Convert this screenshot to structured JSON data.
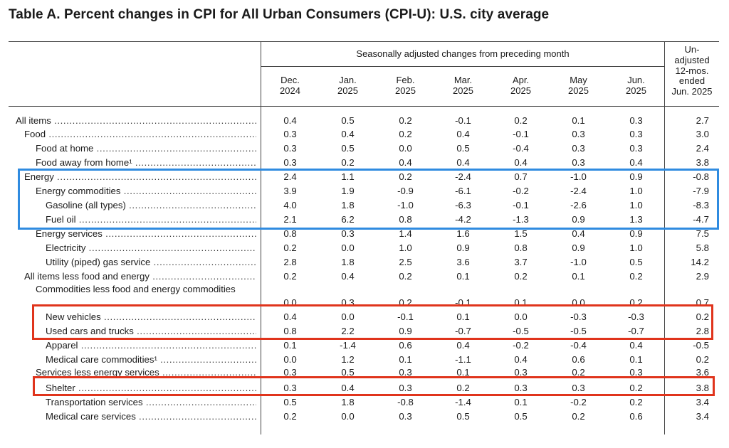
{
  "title": "Table A. Percent changes in CPI for All Urban Consumers (CPI-U): U.S. city average",
  "header": {
    "group_label": "Seasonally adjusted changes from preceding month",
    "columns": [
      "Dec.\n2024",
      "Jan.\n2025",
      "Feb.\n2025",
      "Mar.\n2025",
      "Apr.\n2025",
      "May\n2025",
      "Jun.\n2025"
    ],
    "unadjusted_label": "Un-\nadjusted\n12-mos.\nended\nJun. 2025"
  },
  "rows": [
    {
      "label": "All items",
      "indent": 0,
      "values": [
        "0.4",
        "0.5",
        "0.2",
        "-0.1",
        "0.2",
        "0.1",
        "0.3",
        "2.7"
      ]
    },
    {
      "label": "Food",
      "indent": 1,
      "values": [
        "0.3",
        "0.4",
        "0.2",
        "0.4",
        "-0.1",
        "0.3",
        "0.3",
        "3.0"
      ]
    },
    {
      "label": "Food at home",
      "indent": 2,
      "values": [
        "0.3",
        "0.5",
        "0.0",
        "0.5",
        "-0.4",
        "0.3",
        "0.3",
        "2.4"
      ]
    },
    {
      "label": "Food away from home¹",
      "indent": 2,
      "values": [
        "0.3",
        "0.2",
        "0.4",
        "0.4",
        "0.4",
        "0.3",
        "0.4",
        "3.8"
      ]
    },
    {
      "label": "Energy",
      "indent": 1,
      "values": [
        "2.4",
        "1.1",
        "0.2",
        "-2.4",
        "0.7",
        "-1.0",
        "0.9",
        "-0.8"
      ]
    },
    {
      "label": "Energy commodities",
      "indent": 2,
      "values": [
        "3.9",
        "1.9",
        "-0.9",
        "-6.1",
        "-0.2",
        "-2.4",
        "1.0",
        "-7.9"
      ]
    },
    {
      "label": "Gasoline (all types)",
      "indent": 3,
      "values": [
        "4.0",
        "1.8",
        "-1.0",
        "-6.3",
        "-0.1",
        "-2.6",
        "1.0",
        "-8.3"
      ]
    },
    {
      "label": "Fuel oil",
      "indent": 3,
      "values": [
        "2.1",
        "6.2",
        "0.8",
        "-4.2",
        "-1.3",
        "0.9",
        "1.3",
        "-4.7"
      ]
    },
    {
      "label": "Energy services",
      "indent": 2,
      "values": [
        "0.8",
        "0.3",
        "1.4",
        "1.6",
        "1.5",
        "0.4",
        "0.9",
        "7.5"
      ]
    },
    {
      "label": "Electricity",
      "indent": 3,
      "values": [
        "0.2",
        "0.0",
        "1.0",
        "0.9",
        "0.8",
        "0.9",
        "1.0",
        "5.8"
      ]
    },
    {
      "label": "Utility (piped) gas service",
      "indent": 3,
      "values": [
        "2.8",
        "1.8",
        "2.5",
        "3.6",
        "3.7",
        "-1.0",
        "0.5",
        "14.2"
      ]
    },
    {
      "label": "All items less food and energy",
      "indent": 1,
      "values": [
        "0.2",
        "0.4",
        "0.2",
        "0.1",
        "0.2",
        "0.1",
        "0.2",
        "2.9"
      ]
    },
    {
      "label": "Commodities less food and energy commodities",
      "indent": 2,
      "wrap": true,
      "values": [
        "0.0",
        "0.3",
        "0.2",
        "-0.1",
        "0.1",
        "0.0",
        "0.2",
        "0.7"
      ]
    },
    {
      "label": "New vehicles",
      "indent": 3,
      "values": [
        "0.4",
        "0.0",
        "-0.1",
        "0.1",
        "0.0",
        "-0.3",
        "-0.3",
        "0.2"
      ]
    },
    {
      "label": "Used cars and trucks",
      "indent": 3,
      "values": [
        "0.8",
        "2.2",
        "0.9",
        "-0.7",
        "-0.5",
        "-0.5",
        "-0.7",
        "2.8"
      ]
    },
    {
      "label": "Apparel",
      "indent": 3,
      "values": [
        "0.1",
        "-1.4",
        "0.6",
        "0.4",
        "-0.2",
        "-0.4",
        "0.4",
        "-0.5"
      ]
    },
    {
      "label": "Medical care commodities¹",
      "indent": 3,
      "values": [
        "0.0",
        "1.2",
        "0.1",
        "-1.1",
        "0.4",
        "0.6",
        "0.1",
        "0.2"
      ]
    },
    {
      "label": "Services less energy services",
      "indent": 2,
      "values": [
        "0.3",
        "0.5",
        "0.3",
        "0.1",
        "0.3",
        "0.2",
        "0.3",
        "3.6"
      ]
    },
    {
      "label": "Shelter",
      "indent": 3,
      "values": [
        "0.3",
        "0.4",
        "0.3",
        "0.2",
        "0.3",
        "0.3",
        "0.2",
        "3.8"
      ]
    },
    {
      "label": "Transportation services",
      "indent": 3,
      "values": [
        "0.5",
        "1.8",
        "-0.8",
        "-1.4",
        "0.1",
        "-0.2",
        "0.2",
        "3.4"
      ]
    },
    {
      "label": "Medical care services",
      "indent": 3,
      "values": [
        "0.2",
        "0.0",
        "0.3",
        "0.5",
        "0.5",
        "0.2",
        "0.6",
        "3.4"
      ]
    }
  ],
  "highlight_colors": {
    "blue": "#2f8be0",
    "red": "#e0341c"
  }
}
